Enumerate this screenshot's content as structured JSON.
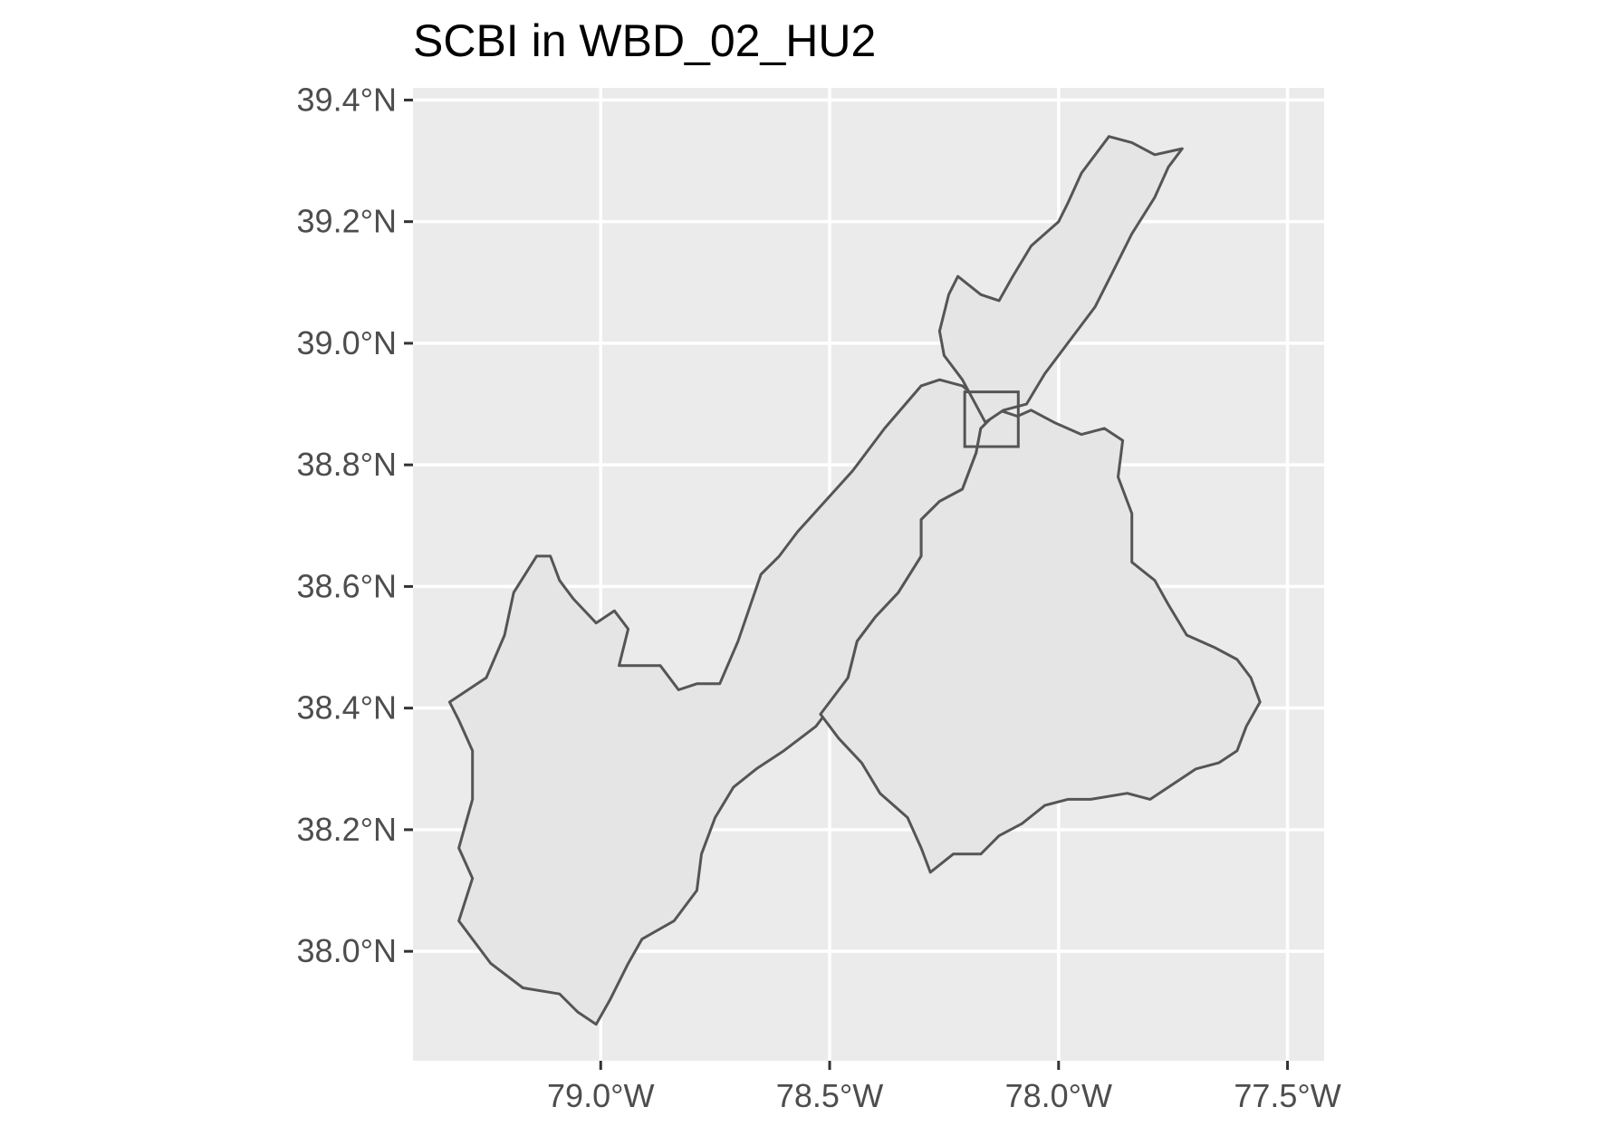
{
  "title": "SCBI in WBD_02_HU2",
  "colors": {
    "panel_background": "#ebebeb",
    "grid": "#ffffff",
    "basin_fill": "#e5e5e5",
    "basin_outline": "#555555",
    "tick_label": "#4d4d4d",
    "title": "#000000"
  },
  "map_data": {
    "type": "map",
    "xlim": [
      -79.41,
      -77.42
    ],
    "ylim": [
      37.82,
      39.42
    ],
    "x_ticks": [
      {
        "value": -79.0,
        "label": "79.0°W"
      },
      {
        "value": -78.5,
        "label": "78.5°W"
      },
      {
        "value": -78.0,
        "label": "78.0°W"
      },
      {
        "value": -77.5,
        "label": "77.5°W"
      }
    ],
    "y_ticks": [
      {
        "value": 39.4,
        "label": "39.4°N"
      },
      {
        "value": 39.2,
        "label": "39.2°N"
      },
      {
        "value": 39.0,
        "label": "39.0°N"
      },
      {
        "value": 38.8,
        "label": "38.8°N"
      },
      {
        "value": 38.6,
        "label": "38.6°N"
      },
      {
        "value": 38.4,
        "label": "38.4°N"
      },
      {
        "value": 38.2,
        "label": "38.2°N"
      },
      {
        "value": 38.0,
        "label": "38.0°N"
      }
    ],
    "site_box": {
      "lon_min": -78.205,
      "lon_max": -78.088,
      "lat_min": 38.83,
      "lat_max": 38.92
    },
    "polygons": [
      {
        "id": "watershed-west",
        "coords": [
          [
            -79.33,
            38.41
          ],
          [
            -79.25,
            38.45
          ],
          [
            -79.21,
            38.52
          ],
          [
            -79.19,
            38.59
          ],
          [
            -79.14,
            38.65
          ],
          [
            -79.11,
            38.65
          ],
          [
            -79.09,
            38.61
          ],
          [
            -79.06,
            38.58
          ],
          [
            -79.01,
            38.54
          ],
          [
            -78.97,
            38.56
          ],
          [
            -78.94,
            38.53
          ],
          [
            -78.96,
            38.47
          ],
          [
            -78.91,
            38.47
          ],
          [
            -78.87,
            38.47
          ],
          [
            -78.83,
            38.43
          ],
          [
            -78.79,
            38.44
          ],
          [
            -78.74,
            38.44
          ],
          [
            -78.7,
            38.51
          ],
          [
            -78.65,
            38.62
          ],
          [
            -78.61,
            38.65
          ],
          [
            -78.57,
            38.69
          ],
          [
            -78.51,
            38.74
          ],
          [
            -78.45,
            38.79
          ],
          [
            -78.38,
            38.86
          ],
          [
            -78.3,
            38.93
          ],
          [
            -78.26,
            38.94
          ],
          [
            -78.21,
            38.93
          ],
          [
            -78.18,
            38.91
          ],
          [
            -78.13,
            38.89
          ],
          [
            -78.17,
            38.86
          ],
          [
            -78.18,
            38.82
          ],
          [
            -78.21,
            38.76
          ],
          [
            -78.26,
            38.74
          ],
          [
            -78.3,
            38.71
          ],
          [
            -78.3,
            38.65
          ],
          [
            -78.35,
            38.59
          ],
          [
            -78.4,
            38.55
          ],
          [
            -78.44,
            38.51
          ],
          [
            -78.46,
            38.45
          ],
          [
            -78.51,
            38.39
          ],
          [
            -78.53,
            38.37
          ],
          [
            -78.6,
            38.33
          ],
          [
            -78.66,
            38.3
          ],
          [
            -78.71,
            38.27
          ],
          [
            -78.75,
            38.22
          ],
          [
            -78.78,
            38.16
          ],
          [
            -78.79,
            38.1
          ],
          [
            -78.84,
            38.05
          ],
          [
            -78.91,
            38.02
          ],
          [
            -78.94,
            37.98
          ],
          [
            -78.98,
            37.92
          ],
          [
            -79.01,
            37.88
          ],
          [
            -79.05,
            37.9
          ],
          [
            -79.09,
            37.93
          ],
          [
            -79.17,
            37.94
          ],
          [
            -79.24,
            37.98
          ],
          [
            -79.31,
            38.05
          ],
          [
            -79.28,
            38.12
          ],
          [
            -79.31,
            38.17
          ],
          [
            -79.28,
            38.25
          ],
          [
            -79.28,
            38.33
          ],
          [
            -79.31,
            38.38
          ]
        ]
      },
      {
        "id": "watershed-east",
        "coords": [
          [
            -78.52,
            38.39
          ],
          [
            -78.46,
            38.45
          ],
          [
            -78.44,
            38.51
          ],
          [
            -78.4,
            38.55
          ],
          [
            -78.35,
            38.59
          ],
          [
            -78.3,
            38.65
          ],
          [
            -78.3,
            38.71
          ],
          [
            -78.26,
            38.74
          ],
          [
            -78.21,
            38.76
          ],
          [
            -78.18,
            38.82
          ],
          [
            -78.17,
            38.86
          ],
          [
            -78.13,
            38.89
          ],
          [
            -78.09,
            38.88
          ],
          [
            -78.06,
            38.89
          ],
          [
            -78.01,
            38.87
          ],
          [
            -77.95,
            38.85
          ],
          [
            -77.9,
            38.86
          ],
          [
            -77.86,
            38.84
          ],
          [
            -77.87,
            38.78
          ],
          [
            -77.84,
            38.72
          ],
          [
            -77.84,
            38.64
          ],
          [
            -77.79,
            38.61
          ],
          [
            -77.76,
            38.57
          ],
          [
            -77.72,
            38.52
          ],
          [
            -77.66,
            38.5
          ],
          [
            -77.61,
            38.48
          ],
          [
            -77.58,
            38.45
          ],
          [
            -77.56,
            38.41
          ],
          [
            -77.59,
            38.37
          ],
          [
            -77.61,
            38.33
          ],
          [
            -77.65,
            38.31
          ],
          [
            -77.7,
            38.3
          ],
          [
            -77.74,
            38.28
          ],
          [
            -77.8,
            38.25
          ],
          [
            -77.85,
            38.26
          ],
          [
            -77.93,
            38.25
          ],
          [
            -77.98,
            38.25
          ],
          [
            -78.03,
            38.24
          ],
          [
            -78.08,
            38.21
          ],
          [
            -78.13,
            38.19
          ],
          [
            -78.17,
            38.16
          ],
          [
            -78.23,
            38.16
          ],
          [
            -78.28,
            38.13
          ],
          [
            -78.3,
            38.17
          ],
          [
            -78.33,
            38.22
          ],
          [
            -78.39,
            38.26
          ],
          [
            -78.43,
            38.31
          ],
          [
            -78.48,
            38.35
          ]
        ]
      },
      {
        "id": "watershed-north",
        "coords": [
          [
            -78.16,
            38.87
          ],
          [
            -78.12,
            38.89
          ],
          [
            -78.07,
            38.9
          ],
          [
            -78.03,
            38.95
          ],
          [
            -77.98,
            39.0
          ],
          [
            -77.92,
            39.06
          ],
          [
            -77.88,
            39.12
          ],
          [
            -77.84,
            39.18
          ],
          [
            -77.79,
            39.24
          ],
          [
            -77.76,
            39.29
          ],
          [
            -77.73,
            39.32
          ],
          [
            -77.79,
            39.31
          ],
          [
            -77.84,
            39.33
          ],
          [
            -77.89,
            39.34
          ],
          [
            -77.95,
            39.28
          ],
          [
            -77.98,
            39.23
          ],
          [
            -78.0,
            39.2
          ],
          [
            -78.06,
            39.16
          ],
          [
            -78.1,
            39.11
          ],
          [
            -78.13,
            39.07
          ],
          [
            -78.17,
            39.08
          ],
          [
            -78.22,
            39.11
          ],
          [
            -78.24,
            39.08
          ],
          [
            -78.26,
            39.02
          ],
          [
            -78.25,
            38.98
          ],
          [
            -78.21,
            38.94
          ]
        ]
      }
    ]
  }
}
